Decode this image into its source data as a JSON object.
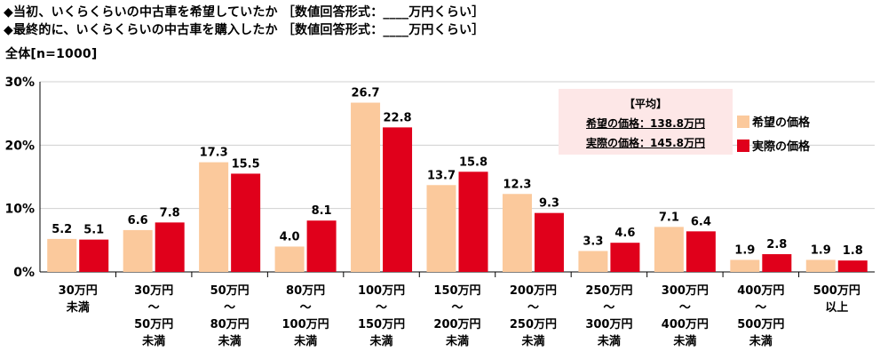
{
  "header": {
    "q1": "◆当初、いくらくらいの中古車を希望していたか ［数値回答形式：____万円くらい］",
    "q2": "◆最終的に、いくらくらいの中古車を購入したか ［数値回答形式：____万円くらい］",
    "sample": "全体[n=1000]"
  },
  "average": {
    "title": "【平均】",
    "line1": "希望の価格：138.8万円",
    "line2": "実際の価格：145.8万円"
  },
  "colors": {
    "desired": "#fbc99c",
    "actual": "#e0001b",
    "grid": "#d0d0d0"
  },
  "chart_data": {
    "type": "bar",
    "title": "",
    "xlabel": "",
    "ylabel": "",
    "ylim": [
      0,
      30
    ],
    "yticks": [
      "0%",
      "10%",
      "20%",
      "30%"
    ],
    "grid": true,
    "legend": "right",
    "categories": [
      [
        "30万円",
        "未満"
      ],
      [
        "30万円",
        "～",
        "50万円",
        "未満"
      ],
      [
        "50万円",
        "～",
        "80万円",
        "未満"
      ],
      [
        "80万円",
        "～",
        "100万円",
        "未満"
      ],
      [
        "100万円",
        "～",
        "150万円",
        "未満"
      ],
      [
        "150万円",
        "～",
        "200万円",
        "未満"
      ],
      [
        "200万円",
        "～",
        "250万円",
        "未満"
      ],
      [
        "250万円",
        "～",
        "300万円",
        "未満"
      ],
      [
        "300万円",
        "～",
        "400万円",
        "未満"
      ],
      [
        "400万円",
        "～",
        "500万円",
        "未満"
      ],
      [
        "500万円",
        "以上"
      ]
    ],
    "series": [
      {
        "name": "希望の価格",
        "values": [
          5.2,
          6.6,
          17.3,
          4.0,
          26.7,
          13.7,
          12.3,
          3.3,
          7.1,
          1.9,
          1.9
        ]
      },
      {
        "name": "実際の価格",
        "values": [
          5.1,
          7.8,
          15.5,
          8.1,
          22.8,
          15.8,
          9.3,
          4.6,
          6.4,
          2.8,
          1.8
        ]
      }
    ]
  }
}
